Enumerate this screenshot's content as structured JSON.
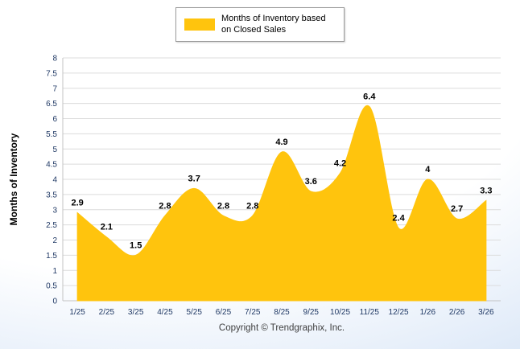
{
  "chart_data": {
    "type": "area",
    "categories": [
      "1/25",
      "2/25",
      "3/25",
      "4/25",
      "5/25",
      "6/25",
      "7/25",
      "8/25",
      "9/25",
      "10/25",
      "11/25",
      "12/25",
      "1/26",
      "2/26",
      "3/26"
    ],
    "series": [
      {
        "name": "Months of Inventory based on Closed Sales",
        "values": [
          2.9,
          2.1,
          1.5,
          2.8,
          3.7,
          2.8,
          2.8,
          4.9,
          3.6,
          4.2,
          6.4,
          2.4,
          4,
          2.7,
          3.3
        ]
      }
    ],
    "title": "",
    "xlabel": "",
    "ylabel": "Months of Inventory",
    "ylim": [
      0,
      8
    ],
    "ytick_step": 0.5,
    "grid": true,
    "smooth": true,
    "legend_position": "top",
    "colors": {
      "series_fill": "#FFC40D",
      "grid_line": "#DCDCDC",
      "axis_line": "#C3C3C3",
      "axis_text": "#1F3864",
      "value_label": "#000000"
    }
  },
  "legend": {
    "label": "Months of Inventory based on Closed Sales",
    "swatch_color": "#FFC40D"
  },
  "footer": {
    "copyright": "Copyright © Trendgraphix, Inc."
  }
}
